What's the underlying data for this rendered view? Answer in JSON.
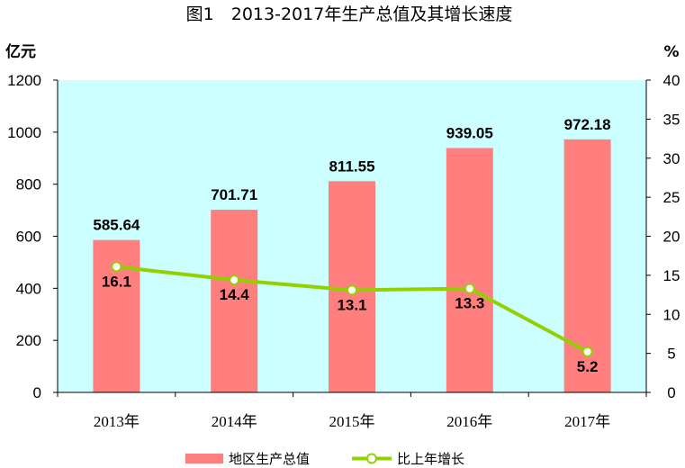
{
  "chart_data": {
    "type": "bar",
    "title": "图1　2013-2017年生产总值及其增长速度",
    "categories": [
      "2013年",
      "2014年",
      "2015年",
      "2016年",
      "2017年"
    ],
    "series": [
      {
        "name": "地区生产总值",
        "type": "bar",
        "axis": "left",
        "values": [
          585.64,
          701.71,
          811.55,
          939.05,
          972.18
        ],
        "labels": [
          "585.64",
          "701.71",
          "811.55",
          "939.05",
          "972.18"
        ],
        "color": "#FF7F7F"
      },
      {
        "name": "比上年增长",
        "type": "line",
        "axis": "right",
        "values": [
          16.1,
          14.4,
          13.1,
          13.3,
          5.2
        ],
        "labels": [
          "16.1",
          "14.4",
          "13.1",
          "13.3",
          "5.2"
        ],
        "color": "#92D000"
      }
    ],
    "ylabel_left": "亿元",
    "ylabel_right": "%",
    "ylim_left": [
      0,
      1200
    ],
    "ylim_right": [
      0,
      40
    ],
    "yticks_left": [
      "0",
      "200",
      "400",
      "600",
      "800",
      "1000",
      "1200"
    ],
    "yticks_right": [
      "0",
      "5",
      "10",
      "15",
      "20",
      "25",
      "30",
      "35",
      "40"
    ],
    "legend_position": "bottom",
    "plot_background": "#CCFFFF",
    "grid": false
  }
}
